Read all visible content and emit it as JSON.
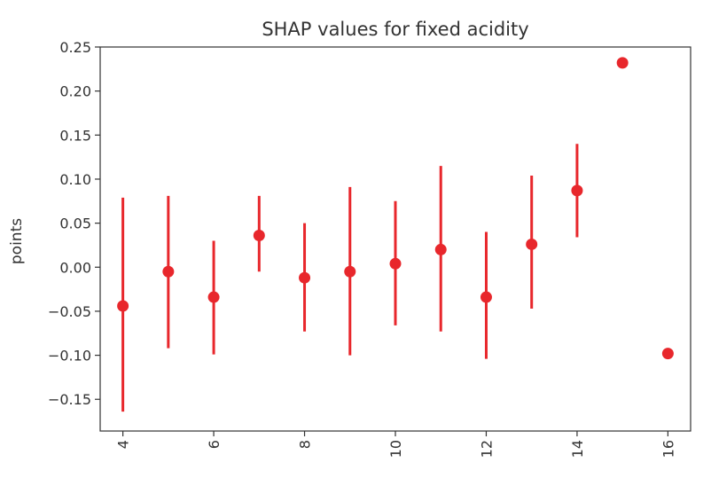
{
  "chart_data": {
    "type": "scatter",
    "title": "SHAP values for fixed acidity",
    "xlabel": "",
    "ylabel": "points",
    "xlim": [
      3.5,
      16.5
    ],
    "ylim": [
      -0.186,
      0.25
    ],
    "xticks": [
      4,
      6,
      8,
      10,
      12,
      14,
      16
    ],
    "xtick_labels": [
      "4",
      "6",
      "8",
      "10",
      "12",
      "14",
      "16"
    ],
    "yticks": [
      0.25,
      0.2,
      0.15,
      0.1,
      0.05,
      0.0,
      -0.05,
      -0.1,
      -0.15
    ],
    "ytick_labels": [
      "0.25",
      "0.20",
      "0.15",
      "0.10",
      "0.05",
      "0.00",
      "−0.05",
      "−0.10",
      "−0.15"
    ],
    "grid": false,
    "color": "#e8272c",
    "points": [
      {
        "x": 4,
        "y": -0.044,
        "low": -0.164,
        "high": 0.079
      },
      {
        "x": 5,
        "y": -0.005,
        "low": -0.092,
        "high": 0.081
      },
      {
        "x": 6,
        "y": -0.034,
        "low": -0.099,
        "high": 0.03
      },
      {
        "x": 7,
        "y": 0.036,
        "low": -0.005,
        "high": 0.081
      },
      {
        "x": 8,
        "y": -0.012,
        "low": -0.073,
        "high": 0.05
      },
      {
        "x": 9,
        "y": -0.005,
        "low": -0.1,
        "high": 0.091
      },
      {
        "x": 10,
        "y": 0.004,
        "low": -0.066,
        "high": 0.075
      },
      {
        "x": 11,
        "y": 0.02,
        "low": -0.073,
        "high": 0.115
      },
      {
        "x": 12,
        "y": -0.034,
        "low": -0.104,
        "high": 0.04
      },
      {
        "x": 13,
        "y": 0.026,
        "low": -0.047,
        "high": 0.104
      },
      {
        "x": 14,
        "y": 0.087,
        "low": 0.034,
        "high": 0.14
      },
      {
        "x": 15,
        "y": 0.232,
        "low": null,
        "high": null
      },
      {
        "x": 16,
        "y": -0.098,
        "low": null,
        "high": null
      }
    ]
  }
}
